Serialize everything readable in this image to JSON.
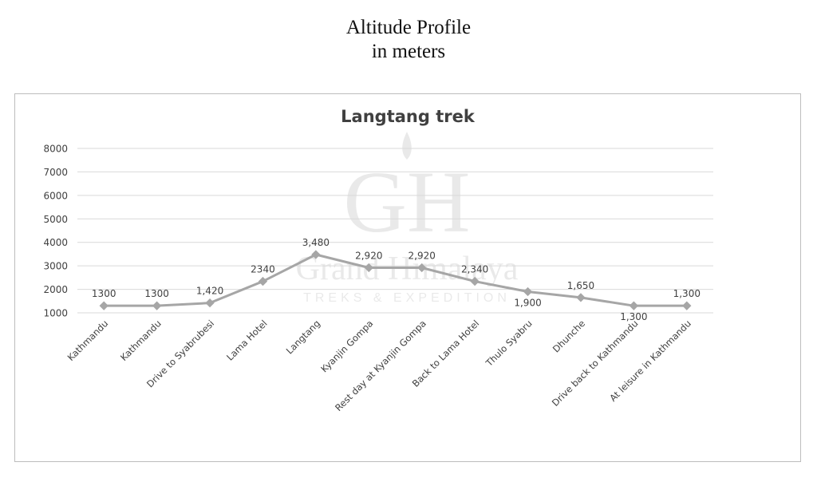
{
  "page": {
    "title_line1": "Altitude Profile",
    "title_line2": "in meters"
  },
  "watermark": {
    "monogram": "GH",
    "name": "Grand Himalaya",
    "tagline": "TREKS & EXPEDITION"
  },
  "chart_data": {
    "type": "line",
    "title": "Langtang trek",
    "xlabel": "",
    "ylabel": "",
    "ylim": [
      1000,
      8000
    ],
    "yticks": [
      1000,
      2000,
      3000,
      4000,
      5000,
      6000,
      7000,
      8000
    ],
    "grid": true,
    "legend": "none",
    "categories": [
      "Kathmandu",
      "Kathmandu",
      "Drive to Syabrubesi",
      "Lama Hotel",
      "Langtang",
      "Kyanjin Gompa",
      "Rest day at Kyanjin Gompa",
      "Back to Lama Hotel",
      "Thulo Syabru",
      "Dhunche",
      "Drive back to Kathmandu",
      "At leisure in Kathmandu"
    ],
    "series": [
      {
        "values": [
          1300,
          1300,
          1420,
          2340,
          3480,
          2920,
          2920,
          2340,
          1900,
          1650,
          1300,
          1300
        ],
        "labels": [
          "1300",
          "1300",
          "1,420",
          "2340",
          "3,480",
          "2,920",
          "2,920",
          "2,340",
          "1,900",
          "1,650",
          "1,300",
          "1,300"
        ],
        "label_pos": [
          "above",
          "above",
          "above",
          "above",
          "above",
          "above",
          "above",
          "above",
          "below",
          "above",
          "below",
          "above"
        ],
        "color": "#a6a6a6"
      }
    ],
    "colors": {
      "line": "#a6a6a6",
      "grid": "#d9d9d9",
      "text": "#404040"
    }
  }
}
